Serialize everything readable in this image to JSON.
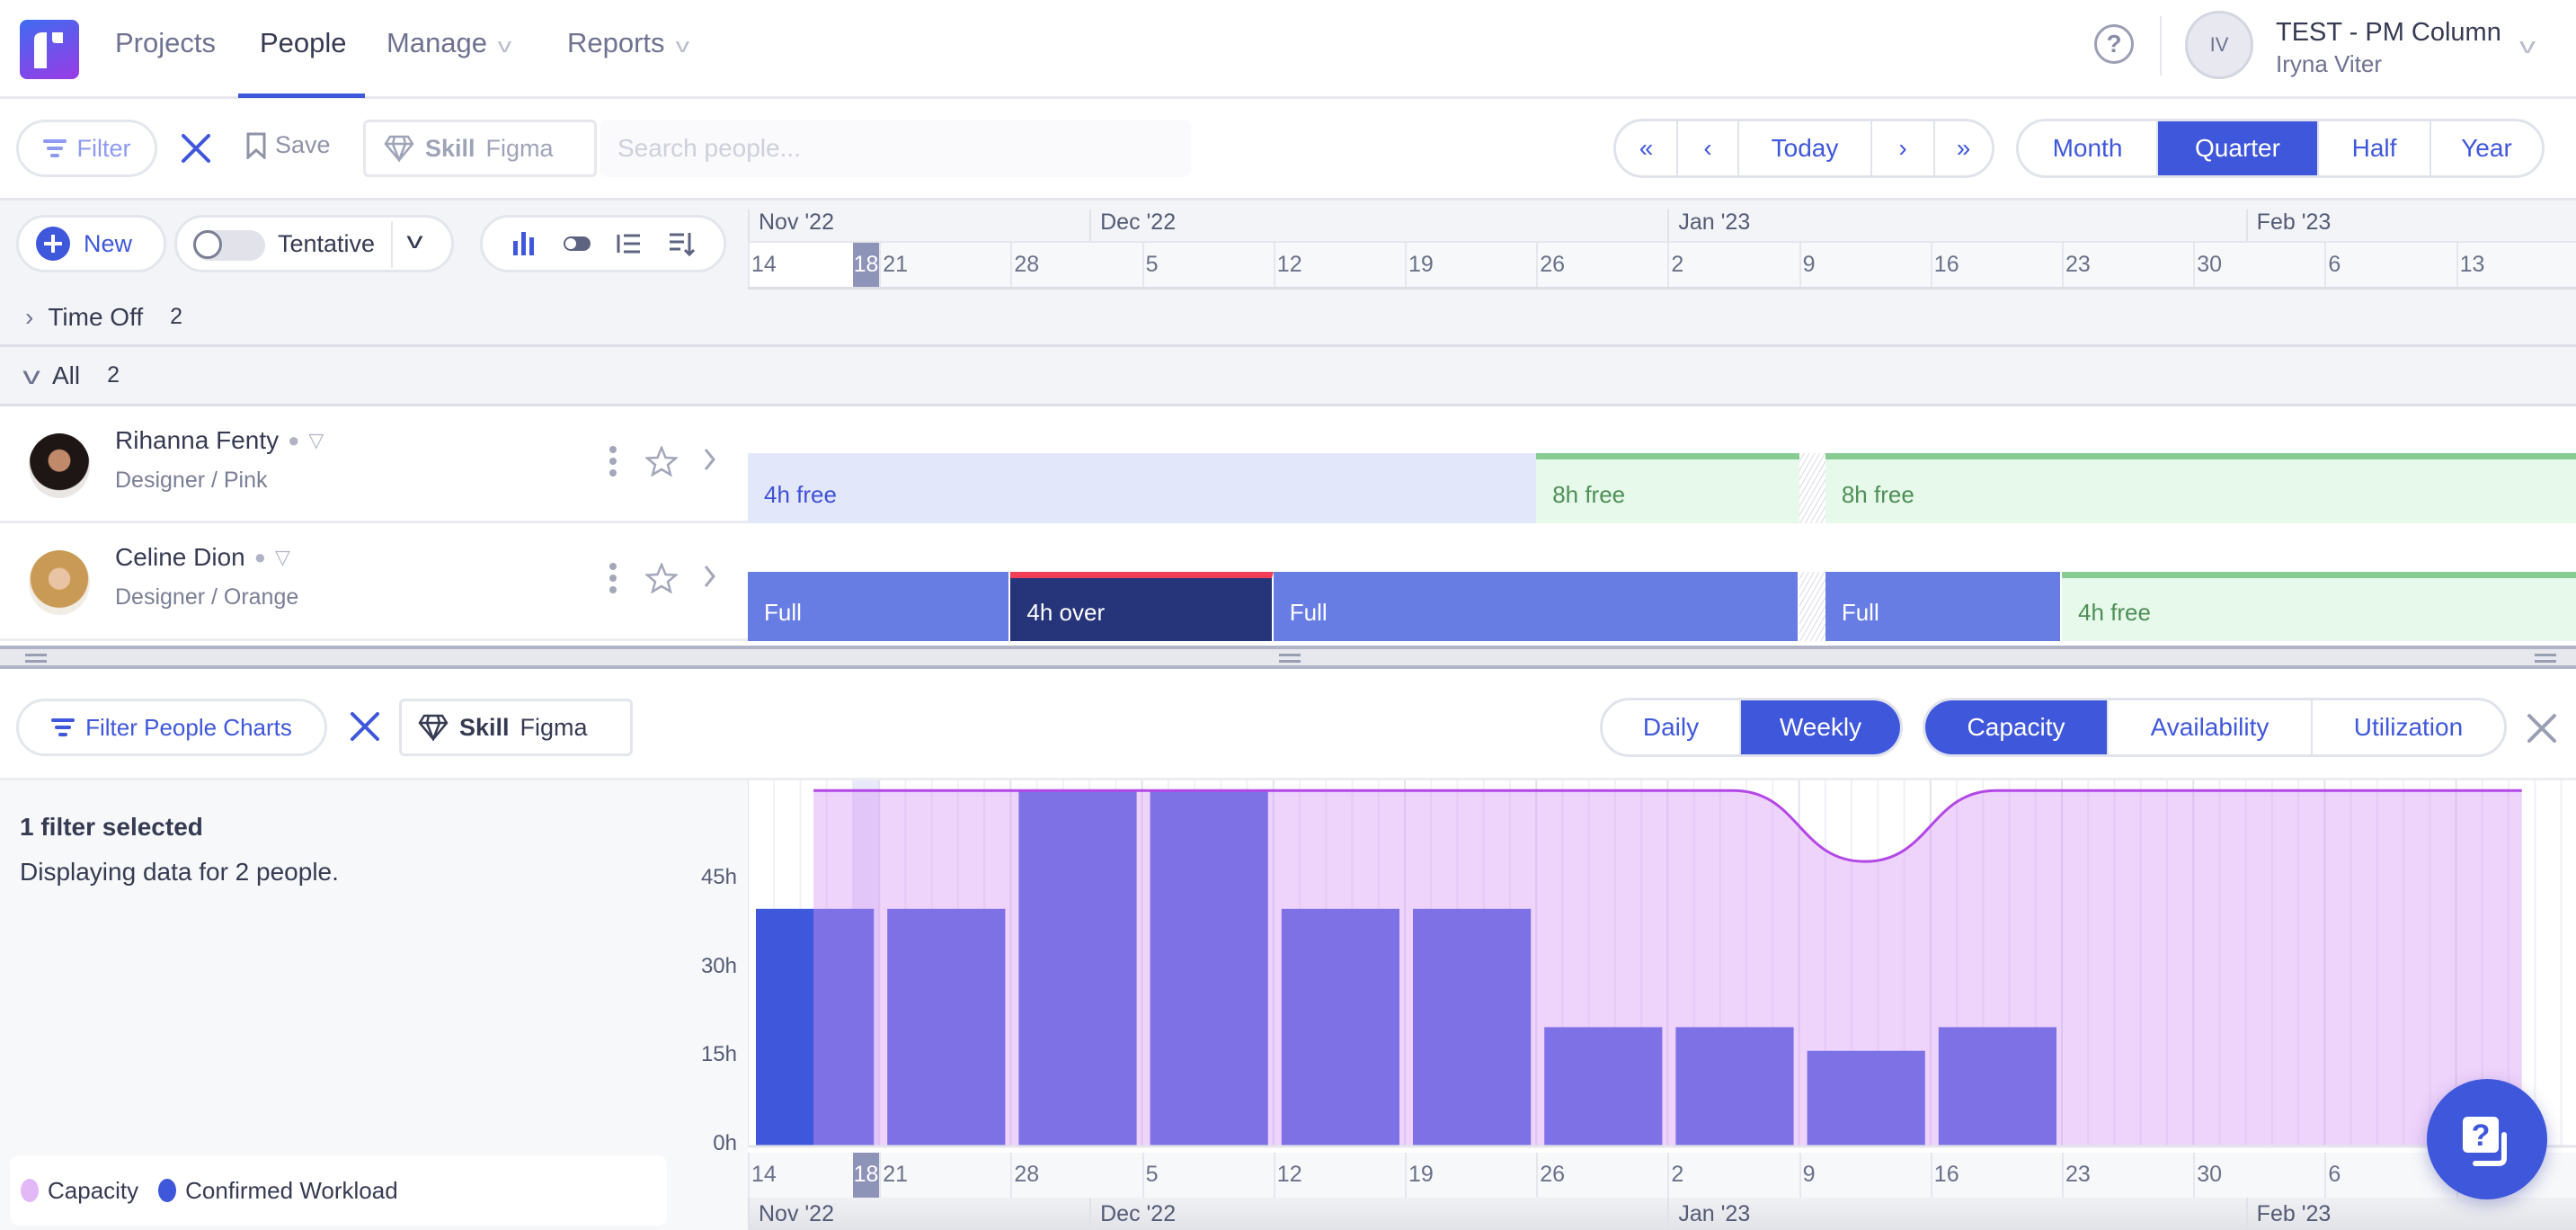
{
  "nav": {
    "items": [
      {
        "label": "Projects"
      },
      {
        "label": "People"
      },
      {
        "label": "Manage"
      },
      {
        "label": "Reports"
      }
    ],
    "active": "People",
    "help_label": "?",
    "account": {
      "initials": "IV",
      "org": "TEST - PM Column",
      "user": "Iryna Viter"
    }
  },
  "toolbar": {
    "filter_label": "Filter",
    "save_label": "Save",
    "skill_label": "Skill",
    "skill_value": "Figma",
    "search_placeholder": "Search people...",
    "today_label": "Today",
    "views": [
      "Month",
      "Quarter",
      "Half",
      "Year"
    ],
    "active_view": "Quarter"
  },
  "controls": {
    "new_label": "New",
    "tentative_label": "Tentative",
    "tentative_on": false
  },
  "timeline": {
    "months": [
      {
        "label": "Nov '22",
        "date": "2022-11-14"
      },
      {
        "label": "Dec '22",
        "date": "2022-12-01"
      },
      {
        "label": "Jan '23",
        "date": "2023-01-02"
      },
      {
        "label": "Feb '23",
        "date": "2023-02-01"
      }
    ],
    "weeks": [
      "14",
      "21",
      "28",
      "5",
      "12",
      "19",
      "26",
      "2",
      "9",
      "16",
      "23",
      "30",
      "6",
      "13"
    ],
    "week_starts": [
      "2022-11-14",
      "2022-11-21",
      "2022-11-28",
      "2022-12-05",
      "2022-12-12",
      "2022-12-19",
      "2022-12-26",
      "2023-01-02",
      "2023-01-09",
      "2023-01-16",
      "2023-01-23",
      "2023-01-30",
      "2023-02-06",
      "2023-02-13"
    ],
    "today": {
      "label": "18",
      "date": "2022-11-18"
    }
  },
  "groups": [
    {
      "label": "Time Off",
      "count": "2",
      "expanded": false
    },
    {
      "label": "All",
      "count": "2",
      "expanded": true
    }
  ],
  "people": [
    {
      "name": "Rihanna Fenty",
      "role": "Designer / Pink",
      "bars": [
        {
          "label": "4h free",
          "type": "freeblue",
          "start": "2022-11-14",
          "end": "2022-12-23"
        },
        {
          "label": "8h free",
          "type": "freegreen",
          "start": "2022-12-26",
          "end": "2023-01-06"
        },
        {
          "label": "",
          "type": "hatch",
          "start": "2023-01-09",
          "end": "2023-01-09"
        },
        {
          "label": "8h free",
          "type": "freegreen",
          "start": "2023-01-10",
          "end": null
        }
      ]
    },
    {
      "name": "Celine Dion",
      "role": "Designer / Orange",
      "bars": [
        {
          "label": "Full",
          "type": "full",
          "start": "2022-11-14",
          "end": "2022-11-25"
        },
        {
          "label": "4h over",
          "type": "over",
          "start": "2022-11-28",
          "end": "2022-12-09"
        },
        {
          "label": "Full",
          "type": "full",
          "start": "2022-12-12",
          "end": "2023-01-06"
        },
        {
          "label": "",
          "type": "hatch",
          "start": "2023-01-09",
          "end": "2023-01-09"
        },
        {
          "label": "Full",
          "type": "full",
          "start": "2023-01-10",
          "end": "2023-01-20"
        },
        {
          "label": "4h free",
          "type": "freegreen",
          "start": "2023-01-23",
          "end": null
        }
      ]
    }
  ],
  "chart_toolbar": {
    "filter_label": "Filter People Charts",
    "skill_label": "Skill",
    "skill_value": "Figma",
    "granularity": [
      "Daily",
      "Weekly"
    ],
    "active_granularity": "Weekly",
    "metrics": [
      "Capacity",
      "Availability",
      "Utilization"
    ],
    "active_metric": "Capacity"
  },
  "chart_panel": {
    "title": "1 filter selected",
    "subtitle": "Displaying data for 2 people."
  },
  "chart_data": {
    "type": "bar",
    "categories": [
      "14",
      "21",
      "28",
      "5",
      "12",
      "19",
      "26",
      "2",
      "9",
      "16",
      "23",
      "30",
      "6",
      "13"
    ],
    "x_months": [
      "Nov '22",
      "Dec '22",
      "Jan '23",
      "Feb '23"
    ],
    "series": [
      {
        "name": "Confirmed Workload",
        "type": "bar",
        "color": "#3F57DB",
        "values": [
          40,
          40,
          60,
          60,
          40,
          40,
          20,
          20,
          16,
          20,
          0,
          0,
          0,
          0
        ]
      },
      {
        "name": "Capacity",
        "type": "area",
        "color": "#E3B8F7",
        "line_color": "#B347E6",
        "values": [
          60,
          60,
          60,
          60,
          60,
          60,
          60,
          60,
          48,
          60,
          60,
          60,
          60,
          60
        ]
      }
    ],
    "yticks": [
      "0h",
      "15h",
      "30h",
      "45h"
    ],
    "ytick_values": [
      0,
      15,
      30,
      45
    ],
    "ylim": [
      0,
      60
    ],
    "legend": "bottom-left",
    "grid": true
  },
  "colors": {
    "accent": "#3F57DB",
    "over": "#EF3E55",
    "free": "#88CC94"
  }
}
